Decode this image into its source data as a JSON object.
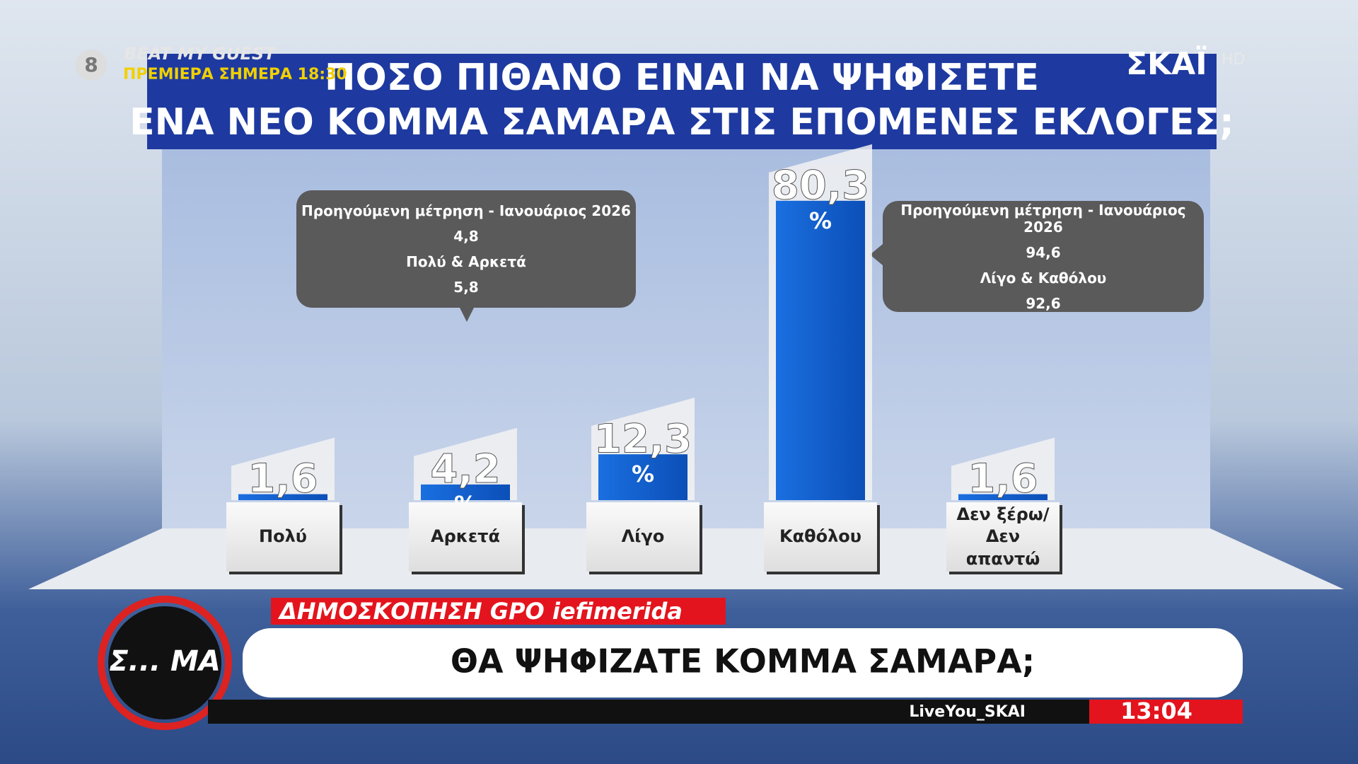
{
  "chart_data": {
    "type": "bar",
    "title": [
      "ΠΟΣΟ ΠΙΘΑΝΟ ΕΙΝΑΙ ΝΑ ΨΗΦΙΣΕΤΕ",
      "ΕΝΑ ΝΕΟ ΚΟΜΜΑ ΣΑΜΑΡΑ ΣΤΙΣ ΕΠΟΜΕΝΕΣ ΕΚΛΟΓΕΣ;"
    ],
    "categories": [
      "Πολύ",
      "Αρκετά",
      "Λίγο",
      "Καθόλου",
      "Δεν ξέρω/\nΔεν απαντώ"
    ],
    "values": [
      1.6,
      4.2,
      12.3,
      80.3,
      1.6
    ],
    "value_labels": [
      "1,6",
      "4,2",
      "12,3",
      "80,3",
      "1,6"
    ],
    "value_unit": "%",
    "color": "#1a6fe0",
    "annotations": [
      {
        "lines": [
          "Προηγούμενη μέτρηση - Ιανουάριος 2026",
          "4,8",
          "Πολύ & Αρκετά",
          "5,8"
        ]
      },
      {
        "lines": [
          "Προηγούμενη μέτρηση - Ιανουάριος 2026",
          "94,6",
          "Λίγο & Καθόλου",
          "92,6"
        ]
      }
    ]
  },
  "overlay": {
    "channel_number": "8",
    "promo_title": "BEAT MY GUEST",
    "promo_time": "ΠΡΕΜΙΕΡΑ ΣΗΜΕΡΑ 18:30",
    "logo": "ΣΚΑΪ",
    "logo_hd": "HD",
    "show_logo": "Σ... ΜΑ",
    "source": "ΔΗΜΟΣΚΟΠΗΣΗ  GPO  iefimerida",
    "headline": "ΘΑ ΨΗΦΙΖΑΤΕ ΚΟΜΜΑ ΣΑΜΑΡΑ;",
    "handle": "LiveYou_SKAI",
    "clock": "13:04"
  }
}
